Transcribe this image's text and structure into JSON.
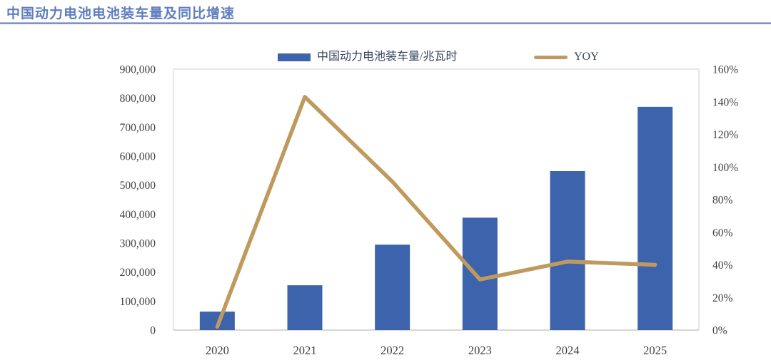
{
  "title": "中国动力电池电池装车量及同比增速",
  "legend": {
    "bar_label": "中国动力电池装车量/兆瓦时",
    "line_label": "YOY"
  },
  "colors": {
    "bar": "#3c63ac",
    "line": "#bf9a5f",
    "title": "#5f7dbf",
    "axis_text": "#3f3f3f",
    "plot_border": "#e0e0e0",
    "baseline": "#d6d6d6"
  },
  "chart_data": {
    "type": "combo",
    "title": "中国动力电池电池装车量及同比增速",
    "categories": [
      "2020",
      "2021",
      "2022",
      "2023",
      "2024",
      "2025"
    ],
    "series": [
      {
        "name": "中国动力电池装车量/兆瓦时",
        "type": "bar",
        "axis": "left",
        "values": [
          63600,
          154500,
          294600,
          387700,
          548400,
          770000
        ]
      },
      {
        "name": "YOY",
        "type": "line",
        "axis": "right",
        "values": [
          2,
          143,
          91,
          31,
          42,
          40
        ]
      }
    ],
    "left_axis": {
      "min": 0,
      "max": 900000,
      "step": 100000,
      "tick_labels": [
        "0",
        "100,000",
        "200,000",
        "300,000",
        "400,000",
        "500,000",
        "600,000",
        "700,000",
        "800,000",
        "900,000"
      ]
    },
    "right_axis": {
      "min": 0,
      "max": 160,
      "step": 20,
      "unit": "%",
      "tick_labels": [
        "0%",
        "20%",
        "40%",
        "60%",
        "80%",
        "100%",
        "120%",
        "140%",
        "160%"
      ]
    },
    "grid": false,
    "legend_position": "top-center"
  }
}
